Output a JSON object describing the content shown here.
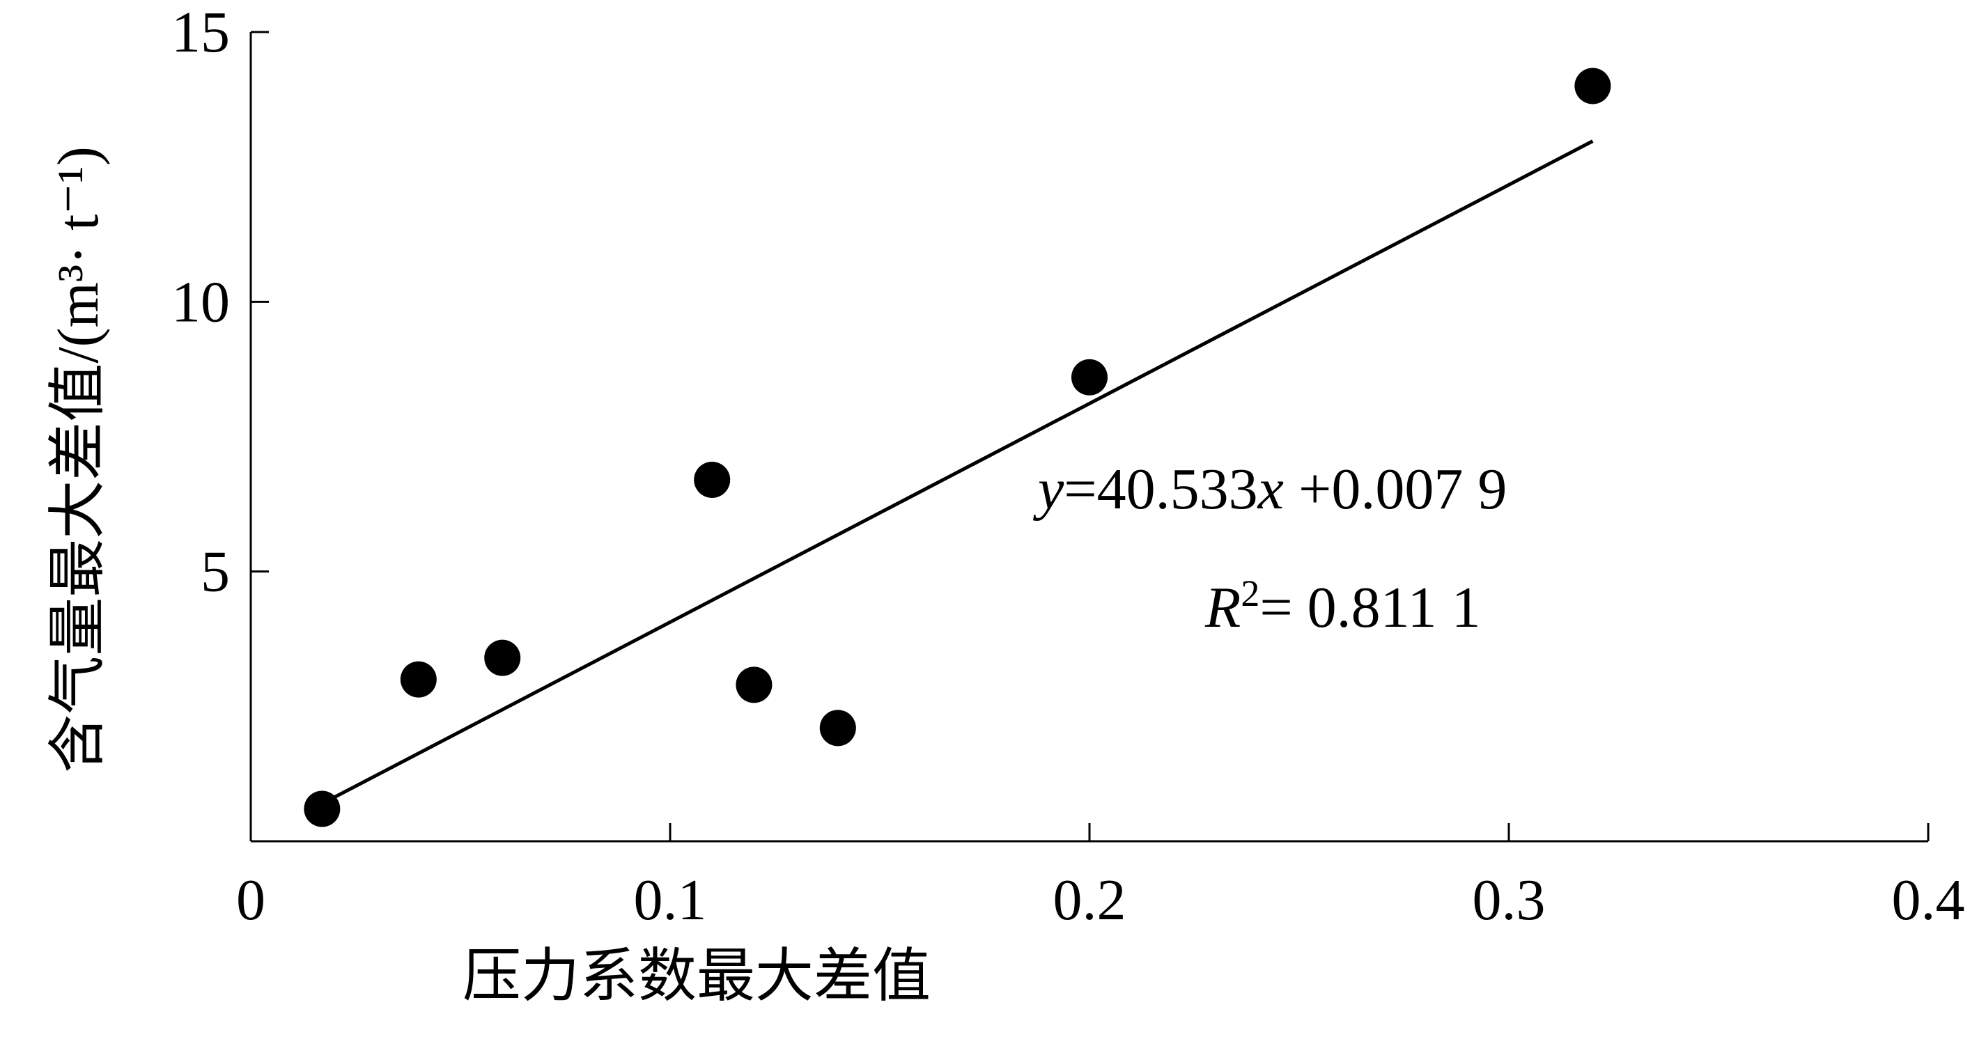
{
  "chart_data": {
    "type": "scatter",
    "title": "",
    "xlabel": "压力系数最大差值",
    "ylabel": "含气量最大差值/(m³· t⁻¹)",
    "xlim": [
      0,
      0.4
    ],
    "ylim": [
      0,
      15
    ],
    "x_ticks": [
      {
        "value": 0,
        "label": "0"
      },
      {
        "value": 0.1,
        "label": "0.1"
      },
      {
        "value": 0.2,
        "label": "0.2"
      },
      {
        "value": 0.3,
        "label": "0.3"
      },
      {
        "value": 0.4,
        "label": "0.4"
      }
    ],
    "y_ticks": [
      {
        "value": 5,
        "label": "5"
      },
      {
        "value": 10,
        "label": "10"
      },
      {
        "value": 15,
        "label": "15"
      }
    ],
    "grid": false,
    "points": [
      {
        "x": 0.017,
        "y": 0.6
      },
      {
        "x": 0.04,
        "y": 3.0
      },
      {
        "x": 0.06,
        "y": 3.4
      },
      {
        "x": 0.11,
        "y": 6.7
      },
      {
        "x": 0.12,
        "y": 2.9
      },
      {
        "x": 0.14,
        "y": 2.1
      },
      {
        "x": 0.2,
        "y": 8.6
      },
      {
        "x": 0.32,
        "y": 14.0
      }
    ],
    "trendline": {
      "slope": 40.533,
      "intercept": 0.0079,
      "x_range": [
        0.017,
        0.32
      ]
    },
    "annotation": {
      "eq_y": "y",
      "eq_rest": "=40.533",
      "eq_x": "x",
      "eq_tail": " +0.007 9",
      "r2_r": "R",
      "r2_sup": "2",
      "r2_rest": "= 0.811 1"
    }
  }
}
